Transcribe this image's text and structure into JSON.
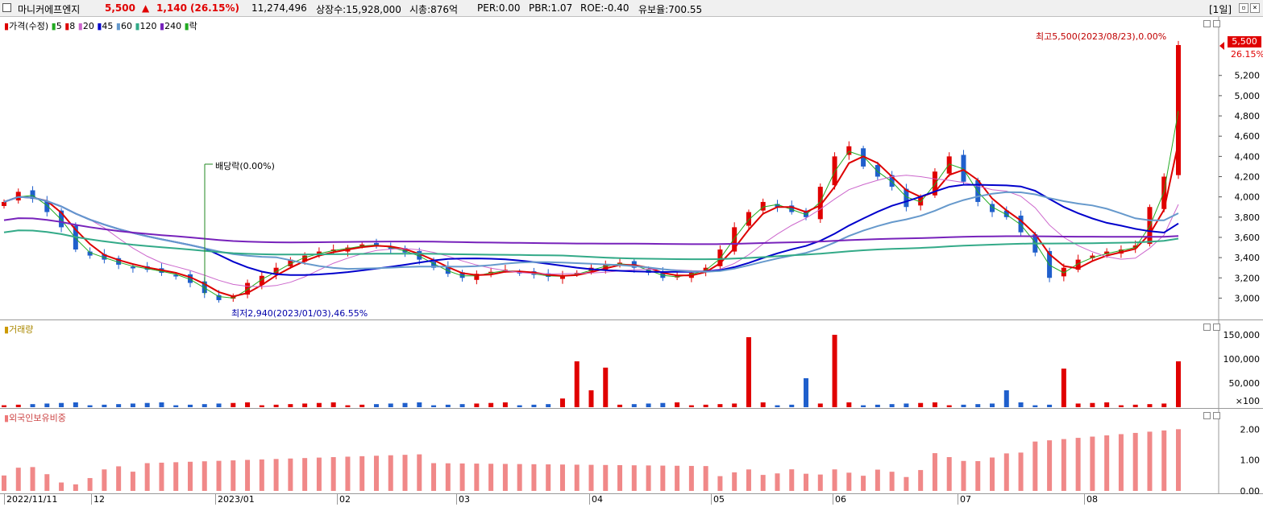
{
  "header": {
    "stock_name": "마니커에프엔지",
    "price": "5,500",
    "change_arrow": "▲",
    "change": "1,140",
    "change_pct": "(26.15%)",
    "volume": "11,274,496",
    "listed_shares": "상장수:15,928,000",
    "market_cap": "시총:876억",
    "per": "PER:0.00",
    "pbr": "PBR:1.07",
    "roe": "ROE:-0.40",
    "float_ratio": "유보율:700.55",
    "period": "[1일]"
  },
  "price_legend": {
    "price_label": "가격(수정)",
    "ma": [
      {
        "label": "5",
        "color": "#22aa22"
      },
      {
        "label": "8",
        "color": "#dd0000"
      },
      {
        "label": "20",
        "color": "#cc66cc"
      },
      {
        "label": "45",
        "color": "#0000cc"
      },
      {
        "label": "60",
        "color": "#6699cc"
      },
      {
        "label": "120",
        "color": "#33aa88"
      },
      {
        "label": "240",
        "color": "#7722bb"
      }
    ],
    "drop_label": "락"
  },
  "annotations": {
    "high": "최고5,500(2023/08/23),0.00%",
    "low": "최저2,940(2023/01/03),46.55%",
    "dividend": "배당락(0.00%)",
    "last_price_tag": "5,500",
    "last_pct_tag": "26.15%"
  },
  "volume_legend": {
    "label": "거래량"
  },
  "foreign_legend": {
    "label": "외국인보유비중"
  },
  "price_axis": {
    "ticks": [
      "5,200",
      "5,000",
      "4,800",
      "4,600",
      "4,400",
      "4,200",
      "4,000",
      "3,800",
      "3,600",
      "3,400",
      "3,200",
      "3,000"
    ]
  },
  "volume_axis": {
    "ticks": [
      "150,000",
      "100,000",
      "50,000",
      "×100"
    ]
  },
  "foreign_axis": {
    "ticks": [
      "2.00",
      "1.00",
      "0.00"
    ]
  },
  "date_axis": {
    "labels": [
      "2022/11/11",
      "12",
      "2023/01",
      "02",
      "03",
      "04",
      "05",
      "06",
      "07",
      "08"
    ]
  },
  "chart_data": {
    "type": "candlestick",
    "price_range": [
      2900,
      5500
    ],
    "high": {
      "value": 5500,
      "date": "2023/08/23"
    },
    "low": {
      "value": 2940,
      "date": "2023/01/03"
    },
    "approx_closes": [
      3950,
      4050,
      3980,
      3850,
      3700,
      3480,
      3420,
      3380,
      3330,
      3300,
      3280,
      3250,
      3220,
      3150,
      3050,
      2980,
      3020,
      3150,
      3220,
      3300,
      3380,
      3420,
      3460,
      3480,
      3500,
      3530,
      3520,
      3480,
      3450,
      3380,
      3300,
      3240,
      3200,
      3240,
      3260,
      3280,
      3250,
      3230,
      3210,
      3220,
      3250,
      3300,
      3330,
      3350,
      3300,
      3250,
      3200,
      3220,
      3250,
      3300,
      3480,
      3700,
      3850,
      3950,
      3900,
      3850,
      3800,
      4100,
      4400,
      4500,
      4300,
      4200,
      4100,
      3900,
      4000,
      4250,
      4400,
      4150,
      3950,
      3850,
      3800,
      3650,
      3450,
      3200,
      3300,
      3380,
      3420,
      3460,
      3480,
      3520,
      3900,
      4200,
      5500
    ],
    "volume_spike_indices": [
      39,
      40,
      41,
      42,
      52,
      56,
      58,
      70,
      74,
      82,
      83
    ],
    "foreign_ratio_range": [
      0,
      2.2
    ]
  }
}
